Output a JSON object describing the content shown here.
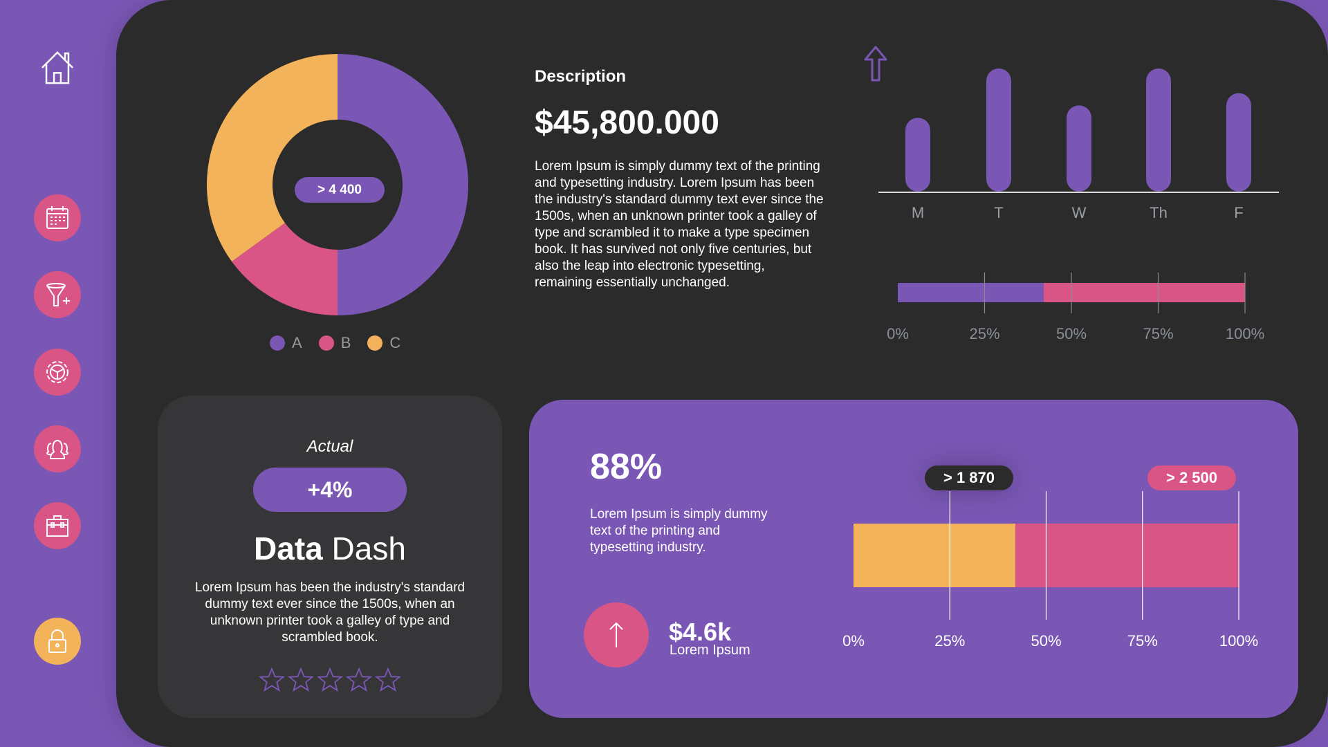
{
  "colors": {
    "purple": "#7a57b5",
    "pink": "#d95586",
    "yellow": "#f2b35b",
    "panel": "#2b2b2b",
    "card": "#363538"
  },
  "sidebar": {
    "items": [
      {
        "icon": "home-icon"
      },
      {
        "icon": "calendar-icon"
      },
      {
        "icon": "funnel-add-icon"
      },
      {
        "icon": "gear-icon"
      },
      {
        "icon": "users-icon"
      },
      {
        "icon": "briefcase-icon"
      },
      {
        "icon": "lock-icon"
      }
    ]
  },
  "donut": {
    "center_label": "> 4 400",
    "legend": [
      "A",
      "B",
      "C"
    ]
  },
  "description": {
    "title": "Description",
    "amount": "$45,800.000",
    "text": "Lorem Ipsum is simply dummy text of the printing and typesetting industry. Lorem Ipsum has been the industry's standard dummy text ever since the 1500s, when an unknown printer took a galley of type and scrambled it to make a type specimen book. It has survived not only five centuries, but also the leap into electronic typesetting, remaining essentially unchanged."
  },
  "progress_top": {
    "value": 42,
    "ticks": [
      "0%",
      "25%",
      "50%",
      "75%",
      "100%"
    ]
  },
  "summary_card": {
    "label": "Actual",
    "change": "+4%",
    "title_bold": "Data",
    "title_light": "Dash",
    "text": "Lorem Ipsum has been the industry's standard dummy text ever since the 1500s, when an unknown printer took a galley of type and scrambled book.",
    "rating": 0,
    "rating_max": 5
  },
  "stats_card": {
    "percent": "88%",
    "text": "Lorem Ipsum is simply dummy text of the printing and typesetting industry.",
    "amount": "$4.6k",
    "amount_label": "Lorem Ipsum",
    "callout_1": "> 1 870",
    "callout_2": "> 2 500",
    "ticks": [
      "0%",
      "25%",
      "50%",
      "75%",
      "100%"
    ]
  },
  "chart_data": [
    {
      "type": "pie",
      "categories": [
        "A",
        "B",
        "C"
      ],
      "values": [
        50,
        15,
        35
      ]
    },
    {
      "type": "bar",
      "categories": [
        "M",
        "T",
        "W",
        "Th",
        "F"
      ],
      "values": [
        60,
        100,
        70,
        100,
        80
      ]
    },
    {
      "type": "bar",
      "orientation": "horizontal",
      "stacked": true,
      "series": [
        {
          "values": [
            42
          ]
        },
        {
          "values": [
            58
          ]
        }
      ],
      "xlim": [
        0,
        100
      ],
      "tick_labels": [
        "0%",
        "25%",
        "50%",
        "75%",
        "100%"
      ]
    },
    {
      "type": "bar",
      "orientation": "horizontal",
      "stacked": true,
      "series": [
        {
          "values": [
            42
          ]
        },
        {
          "values": [
            58
          ]
        }
      ],
      "xlim": [
        0,
        100
      ],
      "tick_labels": [
        "0%",
        "25%",
        "50%",
        "75%",
        "100%"
      ]
    }
  ]
}
